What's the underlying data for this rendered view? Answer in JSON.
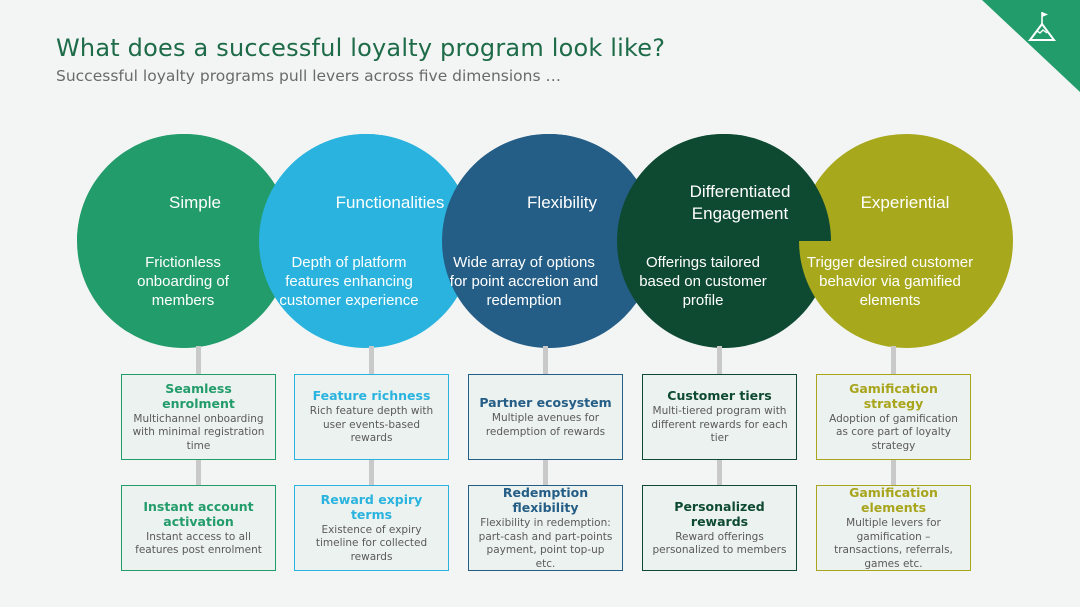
{
  "header": {
    "title": "What does a successful loyalty program look like?",
    "subtitle": "Successful loyalty programs pull levers across five dimensions …"
  },
  "corner_icon": "mountain-flag-icon",
  "dimensions": [
    {
      "title": "Simple",
      "description": "Frictionless onboarding of members",
      "color": "#239c6b",
      "accent": "#239c6b",
      "cards": [
        {
          "title": "Seamless enrolment",
          "description": "Multichannel onboarding with minimal registration time"
        },
        {
          "title": "Instant account activation",
          "description": "Instant access to all features post enrolment"
        }
      ]
    },
    {
      "title": "Functionalities",
      "description": "Depth of platform features enhancing customer experience",
      "color": "#29b3de",
      "accent": "#29b3de",
      "cards": [
        {
          "title": "Feature richness",
          "description": "Rich feature depth with user events-based rewards"
        },
        {
          "title": "Reward expiry terms",
          "description": "Existence of expiry timeline for collected rewards"
        }
      ]
    },
    {
      "title": "Flexibility",
      "description": "Wide array of options for point accretion and redemption",
      "color": "#245d86",
      "accent": "#245d86",
      "cards": [
        {
          "title": "Partner ecosystem",
          "description": "Multiple avenues for redemption of rewards"
        },
        {
          "title": "Redemption flexibility",
          "description": "Flexibility in redemption: part-cash and part-points payment, point top-up etc."
        }
      ]
    },
    {
      "title": "Differentiated Engagement",
      "description": "Offerings tailored based on customer profile",
      "color": "#0e4a32",
      "accent": "#0e4a32",
      "cards": [
        {
          "title": "Customer tiers",
          "description": "Multi-tiered program with different rewards for each tier"
        },
        {
          "title": "Personalized rewards",
          "description": "Reward offerings personalized to members"
        }
      ]
    },
    {
      "title": "Experiential",
      "description": "Trigger desired customer behavior via gamified elements",
      "color": "#a7a81c",
      "accent": "#a8a51c",
      "cards": [
        {
          "title": "Gamification strategy",
          "description": "Adoption of gamification as core part of loyalty strategy"
        },
        {
          "title": "Gamification elements",
          "description": "Multiple levers for gamification – transactions, referrals, games etc."
        }
      ]
    }
  ]
}
